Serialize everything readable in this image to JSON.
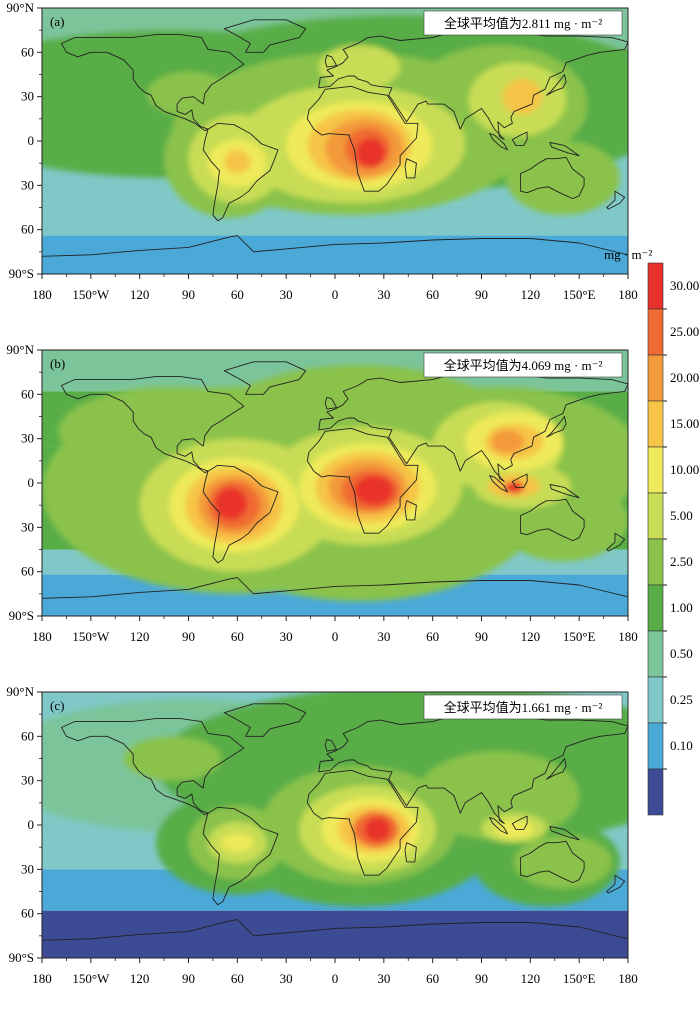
{
  "lat_labels": [
    "90°N",
    "60",
    "30",
    "0",
    "30",
    "60",
    "90°S"
  ],
  "lon_labels": [
    "180",
    "150°W",
    "120",
    "90",
    "60",
    "30",
    "0",
    "30",
    "60",
    "90",
    "120",
    "150°E",
    "180"
  ],
  "panels": [
    {
      "tag": "(a)",
      "annotation": "全球平均值为2.811 mg · m⁻²"
    },
    {
      "tag": "(b)",
      "annotation": "全球平均值为4.069 mg · m⁻²"
    },
    {
      "tag": "(c)",
      "annotation": "全球平均值为1.661 mg · m⁻²"
    }
  ],
  "legend": {
    "unit": "mg · m⁻²",
    "levels": [
      "30.00",
      "25.00",
      "20.00",
      "15.00",
      "10.00",
      "5.00",
      "2.50",
      "1.00",
      "0.50",
      "0.25",
      "0.10"
    ],
    "colors": [
      "#e8312a",
      "#f06b33",
      "#f39a3a",
      "#f6c447",
      "#eeea5a",
      "#c8dd55",
      "#8ac24c",
      "#58ad47",
      "#7cc49a",
      "#7fc8c7",
      "#4aa9d7",
      "#3d4a94"
    ]
  }
}
